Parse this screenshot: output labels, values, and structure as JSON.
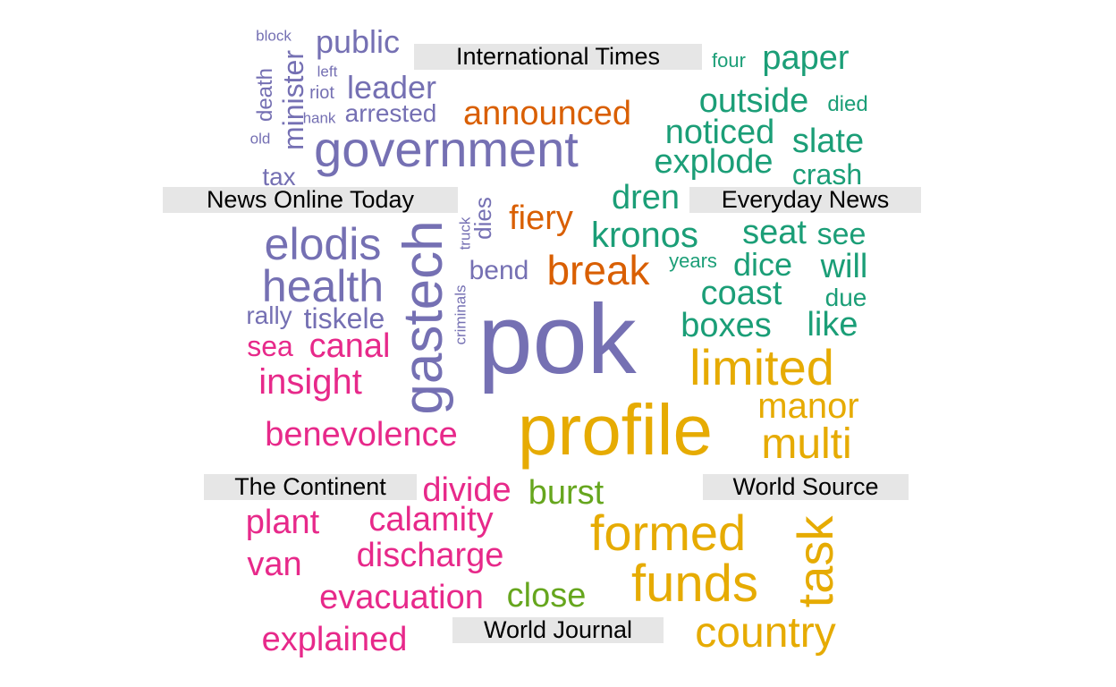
{
  "colors": {
    "purple": "#7570b3",
    "orange": "#d95f02",
    "teal": "#1b9e77",
    "gold": "#e6ab02",
    "pink": "#e7298a",
    "green": "#66a61e",
    "label_bg": "#e6e6e6"
  },
  "labels": {
    "international_times": "International Times",
    "news_online_today": "News Online Today",
    "everyday_news": "Everyday News",
    "the_continent": "The Continent",
    "world_source": "World Source",
    "world_journal": "World Journal"
  },
  "words": [
    {
      "text": "block",
      "color": "purple"
    },
    {
      "text": "public",
      "color": "purple"
    },
    {
      "text": "left",
      "color": "purple"
    },
    {
      "text": "riot",
      "color": "purple"
    },
    {
      "text": "leader",
      "color": "purple"
    },
    {
      "text": "death",
      "color": "purple"
    },
    {
      "text": "minister",
      "color": "purple"
    },
    {
      "text": "hank",
      "color": "purple"
    },
    {
      "text": "arrested",
      "color": "purple"
    },
    {
      "text": "old",
      "color": "purple"
    },
    {
      "text": "government",
      "color": "purple"
    },
    {
      "text": "tax",
      "color": "purple"
    },
    {
      "text": "elodis",
      "color": "purple"
    },
    {
      "text": "gastech",
      "color": "purple"
    },
    {
      "text": "truck",
      "color": "purple"
    },
    {
      "text": "dies",
      "color": "purple"
    },
    {
      "text": "health",
      "color": "purple"
    },
    {
      "text": "bend",
      "color": "purple"
    },
    {
      "text": "rally",
      "color": "purple"
    },
    {
      "text": "tiskele",
      "color": "purple"
    },
    {
      "text": "criminals",
      "color": "purple"
    },
    {
      "text": "pok",
      "color": "purple"
    },
    {
      "text": "announced",
      "color": "orange"
    },
    {
      "text": "fiery",
      "color": "orange"
    },
    {
      "text": "break",
      "color": "orange"
    },
    {
      "text": "four",
      "color": "teal"
    },
    {
      "text": "paper",
      "color": "teal"
    },
    {
      "text": "outside",
      "color": "teal"
    },
    {
      "text": "died",
      "color": "teal"
    },
    {
      "text": "noticed",
      "color": "teal"
    },
    {
      "text": "slate",
      "color": "teal"
    },
    {
      "text": "explode",
      "color": "teal"
    },
    {
      "text": "crash",
      "color": "teal"
    },
    {
      "text": "dren",
      "color": "teal"
    },
    {
      "text": "kronos",
      "color": "teal"
    },
    {
      "text": "seat",
      "color": "teal"
    },
    {
      "text": "see",
      "color": "teal"
    },
    {
      "text": "years",
      "color": "teal"
    },
    {
      "text": "dice",
      "color": "teal"
    },
    {
      "text": "will",
      "color": "teal"
    },
    {
      "text": "coast",
      "color": "teal"
    },
    {
      "text": "due",
      "color": "teal"
    },
    {
      "text": "boxes",
      "color": "teal"
    },
    {
      "text": "like",
      "color": "teal"
    },
    {
      "text": "limited",
      "color": "gold"
    },
    {
      "text": "manor",
      "color": "gold"
    },
    {
      "text": "profile",
      "color": "gold"
    },
    {
      "text": "multi",
      "color": "gold"
    },
    {
      "text": "formed",
      "color": "gold"
    },
    {
      "text": "task",
      "color": "gold"
    },
    {
      "text": "funds",
      "color": "gold"
    },
    {
      "text": "country",
      "color": "gold"
    },
    {
      "text": "sea",
      "color": "pink"
    },
    {
      "text": "canal",
      "color": "pink"
    },
    {
      "text": "insight",
      "color": "pink"
    },
    {
      "text": "benevolence",
      "color": "pink"
    },
    {
      "text": "divide",
      "color": "pink"
    },
    {
      "text": "plant",
      "color": "pink"
    },
    {
      "text": "calamity",
      "color": "pink"
    },
    {
      "text": "van",
      "color": "pink"
    },
    {
      "text": "discharge",
      "color": "pink"
    },
    {
      "text": "evacuation",
      "color": "pink"
    },
    {
      "text": "explained",
      "color": "pink"
    },
    {
      "text": "burst",
      "color": "green"
    },
    {
      "text": "close",
      "color": "green"
    }
  ]
}
